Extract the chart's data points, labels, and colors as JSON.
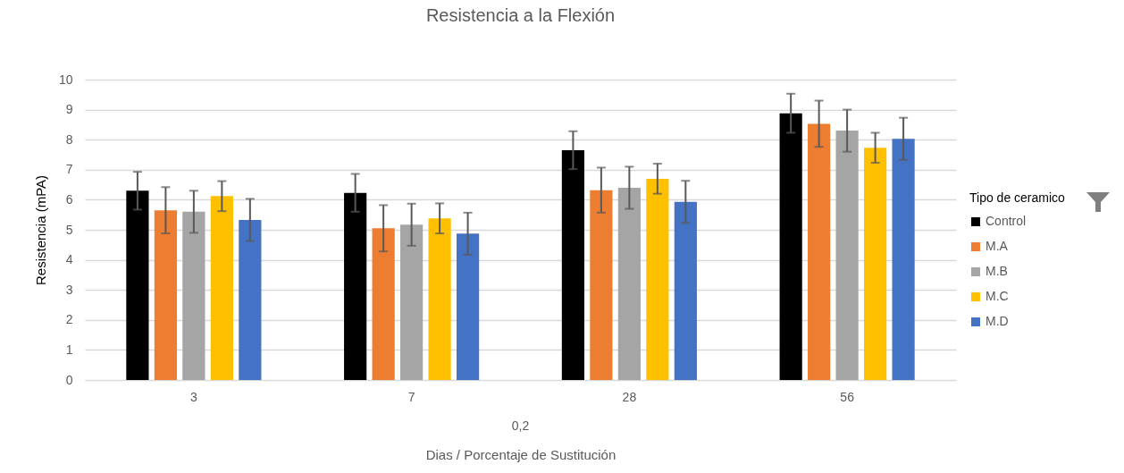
{
  "chart_data": {
    "type": "bar",
    "title": "Resistencia a la Flexión",
    "xlabel": "Dias / Porcentaje de Sustitución",
    "ylabel": "Resistencia (mPA)",
    "legend_title": "Tipo de ceramico",
    "categories": [
      "3",
      "7",
      "28",
      "56"
    ],
    "series": [
      {
        "name": "Control",
        "color": "#000000",
        "values": [
          6.3,
          6.23,
          7.65,
          8.88
        ],
        "errors": [
          0.63,
          0.63,
          0.63,
          0.65
        ]
      },
      {
        "name": "M.A",
        "color": "#ed7d31",
        "values": [
          5.65,
          5.05,
          6.32,
          8.53
        ],
        "errors": [
          0.77,
          0.77,
          0.75,
          0.77
        ]
      },
      {
        "name": "M.B",
        "color": "#a5a5a5",
        "values": [
          5.6,
          5.17,
          6.4,
          8.3
        ],
        "errors": [
          0.7,
          0.7,
          0.7,
          0.7
        ]
      },
      {
        "name": "M.C",
        "color": "#ffc000",
        "values": [
          6.12,
          5.38,
          6.7,
          7.73
        ],
        "errors": [
          0.5,
          0.5,
          0.5,
          0.5
        ]
      },
      {
        "name": "M.D",
        "color": "#4472c4",
        "values": [
          5.33,
          4.87,
          5.93,
          8.03
        ],
        "errors": [
          0.7,
          0.7,
          0.7,
          0.7
        ]
      }
    ],
    "annotations": [
      "0,2"
    ],
    "ylim": [
      0,
      10
    ],
    "yticks": [
      0,
      1,
      2,
      3,
      4,
      5,
      6,
      7,
      8,
      9,
      10
    ],
    "grid": "y",
    "legend": "right"
  }
}
